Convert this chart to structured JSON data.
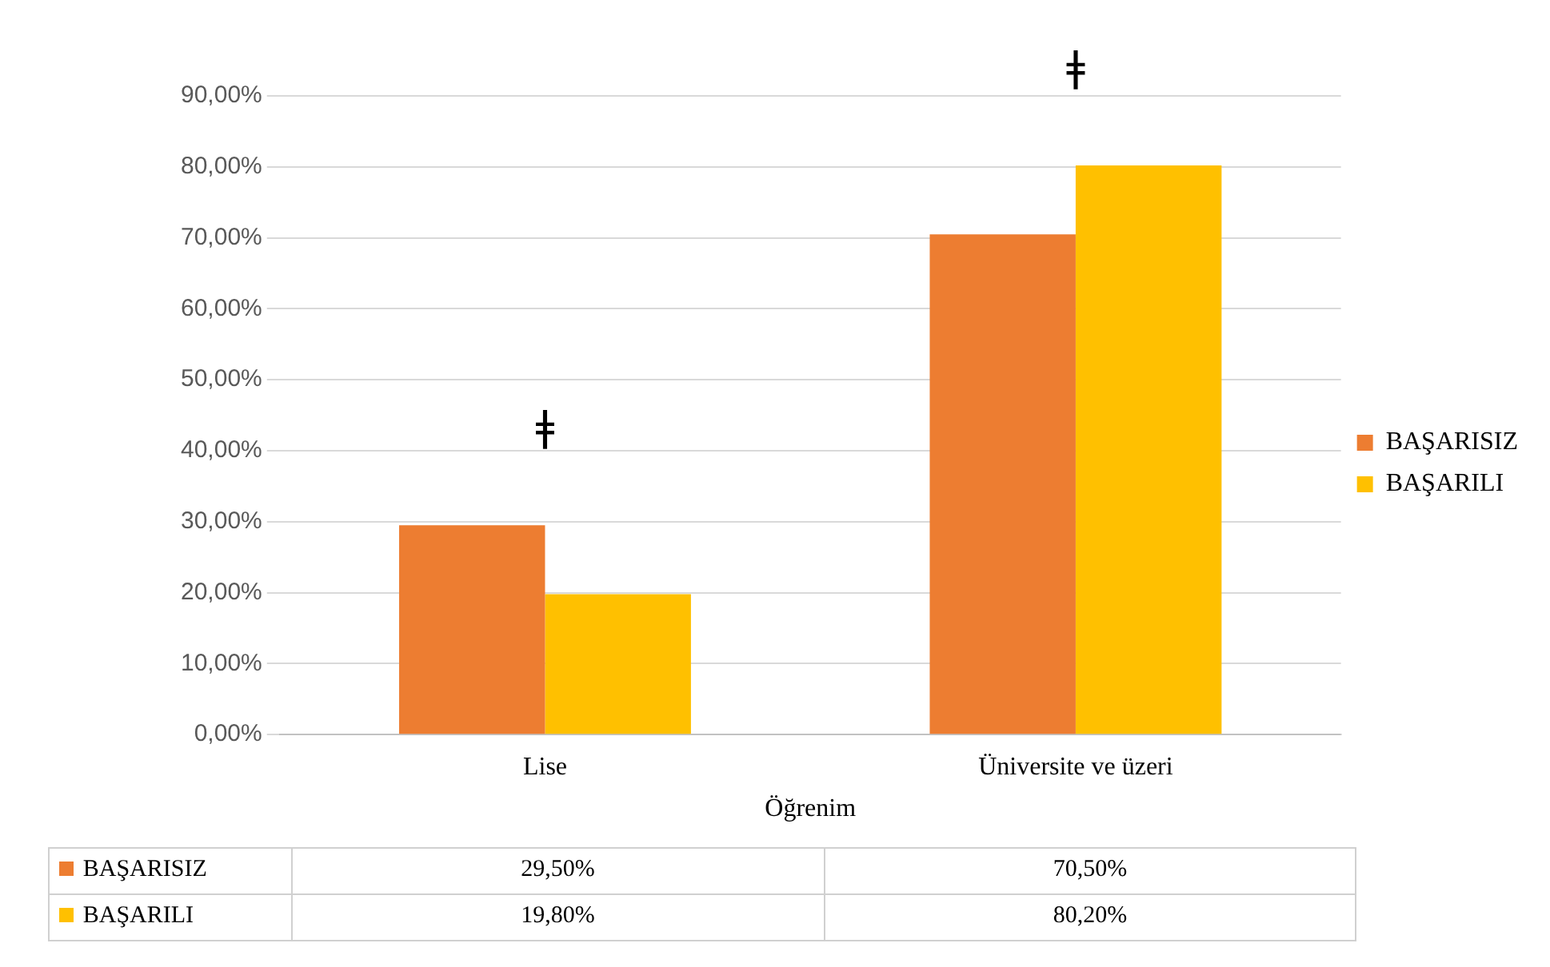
{
  "chart_data": {
    "type": "bar",
    "xlabel": "Öğrenim",
    "categories": [
      "Lise",
      "Üniversite ve üzeri"
    ],
    "series": [
      {
        "name": "BAŞARISIZ",
        "color": "#ed7d31",
        "values": [
          29.5,
          70.5
        ],
        "value_labels": [
          "29,50%",
          "70,50%"
        ]
      },
      {
        "name": "BAŞARILI",
        "color": "#ffc000",
        "values": [
          19.8,
          80.2
        ],
        "value_labels": [
          "19,80%",
          "80,20%"
        ]
      }
    ],
    "ylim": [
      0,
      90
    ],
    "yticks": [
      {
        "value": 0,
        "label": "0,00%"
      },
      {
        "value": 10,
        "label": "10,00%"
      },
      {
        "value": 20,
        "label": "20,00%"
      },
      {
        "value": 30,
        "label": "30,00%"
      },
      {
        "value": 40,
        "label": "40,00%"
      },
      {
        "value": 50,
        "label": "50,00%"
      },
      {
        "value": 60,
        "label": "60,00%"
      },
      {
        "value": 70,
        "label": "70,00%"
      },
      {
        "value": 80,
        "label": "80,00%"
      },
      {
        "value": 90,
        "label": "90,00%"
      }
    ],
    "annotations": [
      "ǂ",
      "ǂ"
    ],
    "grid": "y",
    "legend": "right"
  }
}
